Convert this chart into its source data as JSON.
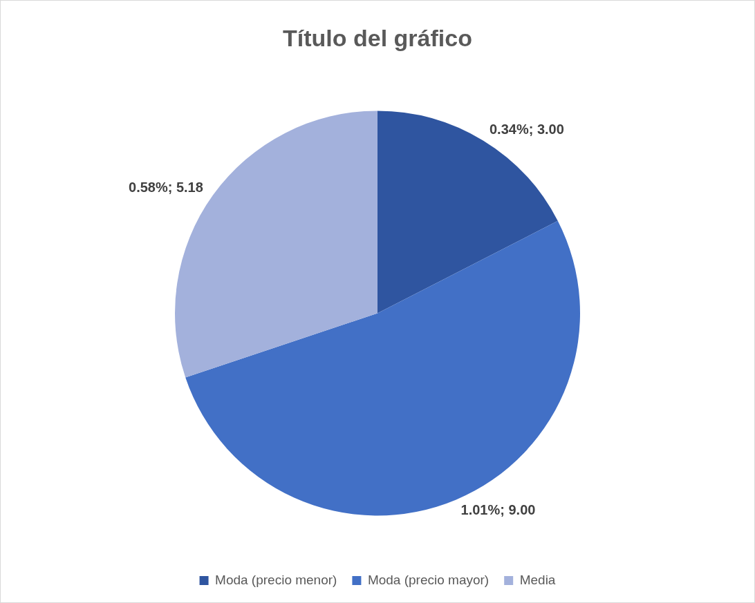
{
  "chart_data": {
    "type": "pie",
    "title": "Título del gráfico",
    "categories": [
      "Moda (precio menor)",
      "Moda (precio mayor)",
      "Media"
    ],
    "values": [
      3.0,
      9.0,
      5.18
    ],
    "colors": [
      "#2f55a0",
      "#4270c6",
      "#a3b1dc"
    ],
    "value_labels": [
      "0.34%; 3.00",
      "1.01%; 9.00",
      "0.58%; 5.18"
    ],
    "legend": "bottom"
  }
}
